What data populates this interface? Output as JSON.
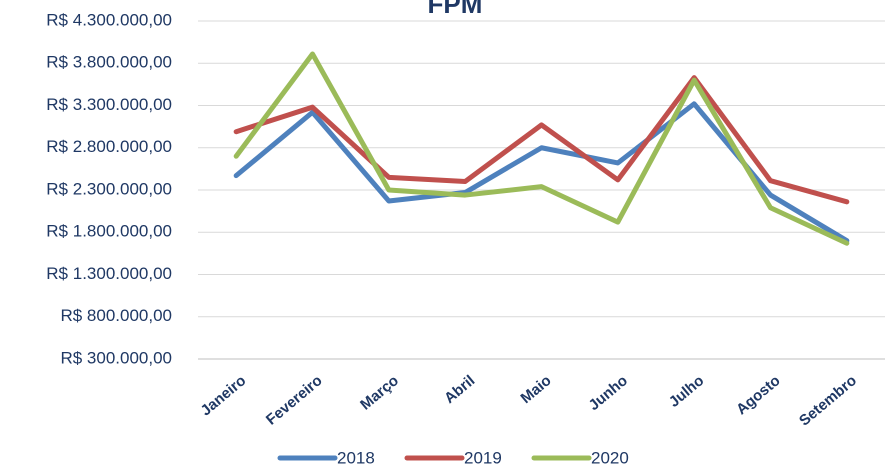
{
  "chart_data": {
    "type": "line",
    "title": "FPM",
    "categories": [
      "Janeiro",
      "Fevereiro",
      "Março",
      "Abril",
      "Maio",
      "Junho",
      "Julho",
      "Agosto",
      "Setembro"
    ],
    "series": [
      {
        "name": "2018",
        "color": "#4e81bd",
        "values": [
          2470000,
          3220000,
          2170000,
          2270000,
          2800000,
          2620000,
          3320000,
          2240000,
          1700000
        ]
      },
      {
        "name": "2019",
        "color": "#c0504d",
        "values": [
          2990000,
          3280000,
          2450000,
          2400000,
          3070000,
          2420000,
          3630000,
          2410000,
          2160000
        ]
      },
      {
        "name": "2020",
        "color": "#9bbb59",
        "values": [
          2700000,
          3910000,
          2300000,
          2240000,
          2340000,
          1920000,
          3600000,
          2090000,
          1670000
        ]
      }
    ],
    "ylim": [
      300000,
      4300000
    ],
    "yticks": [
      {
        "value": 300000,
        "label": "R$ 300.000,00"
      },
      {
        "value": 800000,
        "label": "R$ 800.000,00"
      },
      {
        "value": 1300000,
        "label": "R$ 1.300.000,00"
      },
      {
        "value": 1800000,
        "label": "R$ 1.800.000,00"
      },
      {
        "value": 2300000,
        "label": "R$ 2.300.000,00"
      },
      {
        "value": 2800000,
        "label": "R$ 2.800.000,00"
      },
      {
        "value": 3300000,
        "label": "R$ 3.300.000,00"
      },
      {
        "value": 3800000,
        "label": "R$ 3.800.000,00"
      },
      {
        "value": 4300000,
        "label": "R$ 4.300.000,00"
      }
    ],
    "grid": true,
    "legend": "bottom"
  }
}
